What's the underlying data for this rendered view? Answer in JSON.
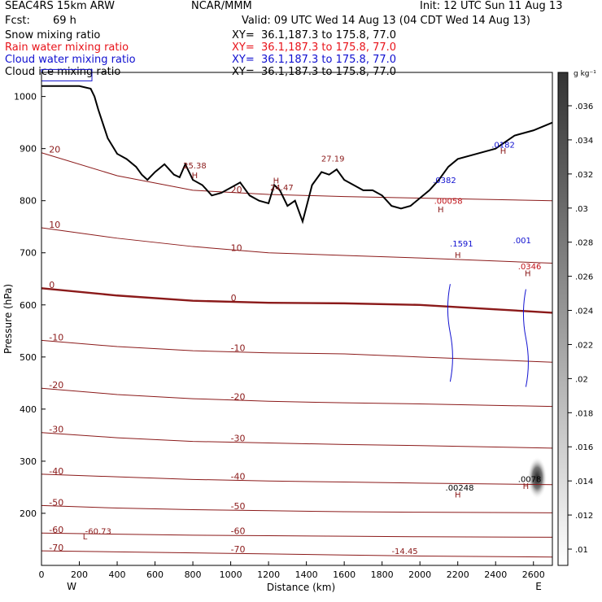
{
  "header": {
    "model": "SEAC4RS 15km ARW",
    "center": "NCAR/MMM",
    "init": "Init: 12 UTC Sun 11 Aug 13",
    "fcst_label": "Fcst:",
    "fcst_value": "69 h",
    "valid": "Valid: 09 UTC Wed 14 Aug 13 (04 CDT Wed 14 Aug 13)",
    "fields": [
      {
        "name": "Snow mixing ratio",
        "xy": "XY=  36.1,187.3 to 175.8, 77.0",
        "color": "#000000"
      },
      {
        "name": "Rain water mixing ratio",
        "xy": "XY=  36.1,187.3 to 175.8, 77.0",
        "color": "#e8131a"
      },
      {
        "name": "Cloud water mixing ratio",
        "xy": "XY=  36.1,187.3 to 175.8, 77.0",
        "color": "#1010d0"
      },
      {
        "name": "Cloud ice mixing ratio",
        "xy": "XY=  36.1,187.3 to 175.8, 77.0",
        "color": "#000000"
      }
    ]
  },
  "chart_data": {
    "type": "line",
    "xlabel": "Distance (km)",
    "ylabel": "Pressure (hPa)",
    "x_ticks": [
      0,
      200,
      400,
      600,
      800,
      1000,
      1200,
      1400,
      1600,
      1800,
      2000,
      2200,
      2400,
      2600
    ],
    "y_ticks": [
      200,
      300,
      400,
      500,
      600,
      700,
      800,
      900,
      1000
    ],
    "xlim": [
      0,
      2700
    ],
    "ylim_pressure": [
      1050,
      100
    ],
    "end_labels": {
      "left": "W",
      "right": "E"
    },
    "colorbar": {
      "unit_label": "g kg⁻¹",
      "ticks": [
        ".036",
        ".034",
        ".032",
        ".03",
        ".028",
        ".026",
        ".024",
        ".022",
        ".02",
        ".018",
        ".016",
        ".014",
        ".012",
        ".01"
      ]
    },
    "terrain": {
      "x": [
        0,
        100,
        200,
        260,
        280,
        300,
        350,
        400,
        450,
        500,
        530,
        560,
        600,
        650,
        700,
        730,
        760,
        800,
        850,
        900,
        950,
        1000,
        1050,
        1100,
        1150,
        1200,
        1230,
        1260,
        1300,
        1340,
        1380,
        1430,
        1480,
        1520,
        1560,
        1600,
        1650,
        1700,
        1750,
        1800,
        1850,
        1900,
        1950,
        2000,
        2050,
        2100,
        2150,
        2200,
        2300,
        2400,
        2500,
        2600,
        2700
      ],
      "p": [
        1020,
        1020,
        1020,
        1015,
        1000,
        975,
        920,
        890,
        880,
        865,
        850,
        840,
        855,
        870,
        850,
        845,
        870,
        840,
        830,
        810,
        815,
        825,
        835,
        810,
        800,
        795,
        830,
        820,
        790,
        800,
        760,
        830,
        855,
        850,
        860,
        840,
        830,
        820,
        820,
        810,
        790,
        785,
        790,
        805,
        820,
        840,
        865,
        880,
        890,
        900,
        925,
        935,
        950
      ]
    },
    "temperature_contours": [
      {
        "label": "-70",
        "p": [
          128,
          126,
          124,
          122,
          120,
          118,
          116
        ]
      },
      {
        "label": "-60",
        "p": [
          162,
          160,
          158,
          157,
          156,
          155,
          154
        ]
      },
      {
        "label": "-50",
        "p": [
          215,
          210,
          207,
          205,
          203,
          202,
          201
        ]
      },
      {
        "label": "-40",
        "p": [
          275,
          270,
          265,
          262,
          260,
          258,
          255
        ]
      },
      {
        "label": "-30",
        "p": [
          355,
          345,
          338,
          335,
          332,
          330,
          325
        ]
      },
      {
        "label": "-20",
        "p": [
          440,
          428,
          420,
          415,
          412,
          410,
          405
        ]
      },
      {
        "label": "-10",
        "p": [
          532,
          520,
          512,
          508,
          506,
          500,
          490
        ]
      },
      {
        "label": "0",
        "p": [
          632,
          618,
          608,
          604,
          603,
          600,
          585
        ]
      },
      {
        "label": "10",
        "p": [
          748,
          728,
          712,
          700,
          695,
          690,
          680
        ]
      },
      {
        "label": "20",
        "p": [
          892,
          848,
          820,
          812,
          808,
          805,
          800
        ]
      }
    ],
    "series": [
      {
        "name": "Cloud water mixing ratio",
        "max_labels": [
          ".1591",
          ".0382",
          ".001"
        ]
      },
      {
        "name": "Rain water mixing ratio",
        "max_labels": [
          ".00058",
          ".0346"
        ]
      },
      {
        "name": "Snow mixing ratio",
        "max_labels": [
          ".0078",
          ".00248"
        ]
      }
    ],
    "annotations": [
      {
        "text": "L",
        "x": 230,
        "p": 150
      },
      {
        "text": "-60.73",
        "x": 300,
        "p": 160
      },
      {
        "text": "H",
        "x": 810,
        "p": 843
      },
      {
        "text": "25.38",
        "x": 810,
        "p": 862
      },
      {
        "text": "H",
        "x": 1240,
        "p": 833
      },
      {
        "text": "24.47",
        "x": 1270,
        "p": 820
      },
      {
        "text": "27.19",
        "x": 1540,
        "p": 875
      },
      {
        "text": "H",
        "x": 2200,
        "p": 690
      },
      {
        "text": ".1591",
        "x": 2220,
        "p": 712
      },
      {
        "text": ".001",
        "x": 2540,
        "p": 718
      },
      {
        "text": "H",
        "x": 2570,
        "p": 655
      },
      {
        "text": ".0346",
        "x": 2580,
        "p": 668
      },
      {
        "text": "H",
        "x": 2110,
        "p": 778
      },
      {
        "text": ".00058",
        "x": 2150,
        "p": 794
      },
      {
        "text": ".0382",
        "x": 2130,
        "p": 834
      },
      {
        "text": "H",
        "x": 2440,
        "p": 890
      },
      {
        "text": ".0182",
        "x": 2440,
        "p": 902
      },
      {
        "text": "H",
        "x": 2200,
        "p": 230
      },
      {
        "text": ".00248",
        "x": 2210,
        "p": 244
      },
      {
        "text": "H",
        "x": 2560,
        "p": 247
      },
      {
        "text": ".0078",
        "x": 2580,
        "p": 260
      },
      {
        "text": "-14.45",
        "x": 1920,
        "p": 122
      }
    ]
  }
}
